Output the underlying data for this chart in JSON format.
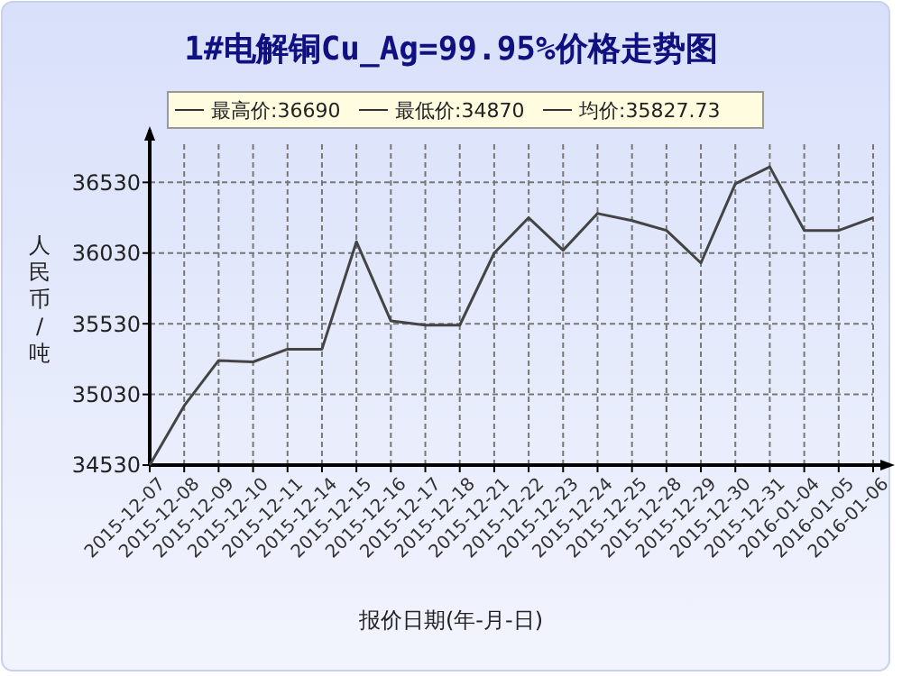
{
  "chart_data": {
    "type": "line",
    "title": "1#电解铜Cu_Ag=99.95%价格走势图",
    "xlabel": "报价日期(年-月-日)",
    "ylabel": "人民币/吨",
    "annotations": [
      "最高价:36690",
      "最低价:34870",
      "均价:35827.73"
    ],
    "categories": [
      "2015-12-07",
      "2015-12-08",
      "2015-12-09",
      "2015-12-10",
      "2015-12-11",
      "2015-12-14",
      "2015-12-15",
      "2015-12-16",
      "2015-12-17",
      "2015-12-18",
      "2015-12-21",
      "2015-12-22",
      "2015-12-23",
      "2015-12-24",
      "2015-12-25",
      "2015-12-28",
      "2015-12-29",
      "2015-12-30",
      "2015-12-31",
      "2016-01-04",
      "2016-01-05",
      "2016-01-06"
    ],
    "series": [
      {
        "color": "#444444",
        "values": [
          34530,
          34950,
          35270,
          35260,
          35350,
          35350,
          36110,
          35550,
          35520,
          35520,
          36030,
          36280,
          36050,
          36310,
          36260,
          36190,
          35960,
          36520,
          36640,
          36190,
          36190,
          36280
        ]
      }
    ],
    "ylim": [
      34530,
      36800
    ],
    "yticks": [
      34530,
      35030,
      35530,
      36030,
      36530
    ],
    "grid": true,
    "marker": "none",
    "line_style": "solid"
  }
}
